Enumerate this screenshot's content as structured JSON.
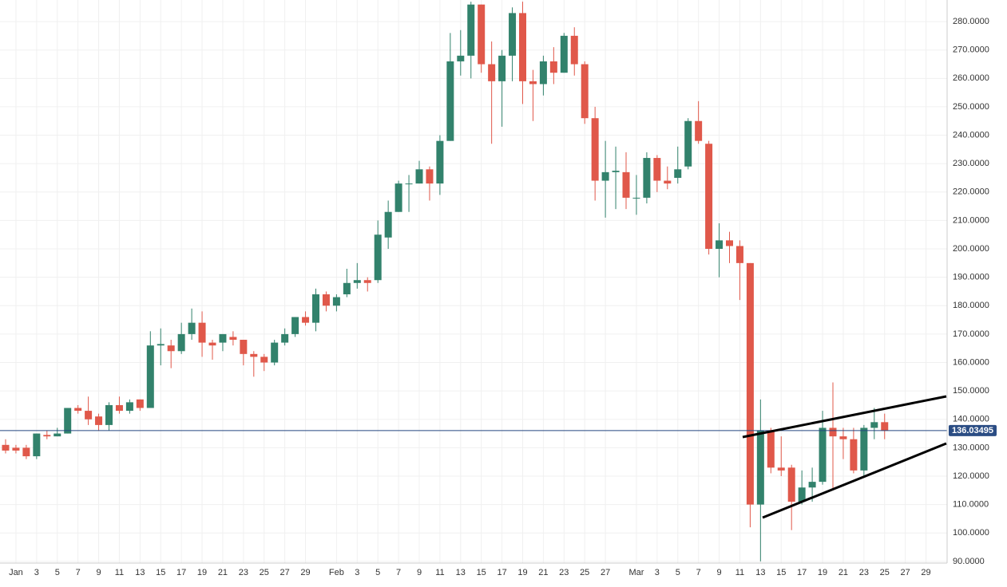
{
  "chart_data": {
    "type": "candlestick",
    "categories": [
      null,
      "Jan",
      null,
      "3",
      null,
      "5",
      null,
      "7",
      null,
      "9",
      null,
      "11",
      null,
      "13",
      null,
      "15",
      null,
      "17",
      null,
      "19",
      null,
      "21",
      null,
      "23",
      null,
      "25",
      null,
      "27",
      null,
      "29",
      null,
      null,
      "Feb",
      null,
      "3",
      null,
      "5",
      null,
      "7",
      null,
      "9",
      null,
      "11",
      null,
      "13",
      null,
      "15",
      null,
      "17",
      null,
      "19",
      null,
      "21",
      null,
      "23",
      null,
      "25",
      null,
      "27",
      null,
      null,
      "Mar",
      null,
      "3",
      null,
      "5",
      null,
      "7",
      null,
      "9",
      null,
      "11",
      null,
      "13",
      null,
      "15",
      null,
      "17",
      null,
      "19",
      null,
      "21",
      null,
      "23",
      null,
      "25",
      null,
      "27",
      null,
      "29",
      null,
      null
    ],
    "open": [
      131,
      130,
      130,
      127,
      134.5,
      134,
      135,
      144,
      143,
      141,
      138,
      145,
      143,
      147,
      144,
      166,
      166,
      164,
      170,
      174,
      167,
      167,
      169,
      168,
      163,
      162,
      160,
      167,
      170,
      176,
      174,
      184,
      180,
      184,
      188,
      189,
      189,
      204,
      213,
      223,
      223,
      228,
      223,
      238,
      266,
      268,
      286,
      265,
      259,
      268,
      283,
      259,
      258,
      266,
      262,
      275,
      265,
      246,
      224,
      227,
      227,
      218,
      218,
      232,
      224,
      225,
      229,
      245,
      237,
      200,
      203,
      201,
      195,
      110,
      136,
      123,
      123,
      111,
      116,
      118,
      137,
      134,
      133,
      122,
      137,
      139,
      null,
      null,
      null,
      null,
      null,
      null
    ],
    "high": [
      133,
      131,
      131,
      135,
      136,
      137,
      144,
      145,
      148,
      142,
      146,
      148,
      147,
      147,
      171,
      172,
      168,
      174,
      179,
      178,
      168,
      170,
      171,
      168,
      164,
      163,
      168,
      172,
      176,
      178,
      186,
      185,
      184,
      193,
      195,
      190,
      210,
      217,
      224,
      226,
      231,
      229,
      240,
      276,
      277,
      287,
      286,
      273,
      270,
      285,
      287,
      263,
      268,
      271,
      276,
      278,
      266,
      250,
      238,
      236,
      234,
      226,
      234,
      233,
      229,
      236,
      246,
      252,
      238,
      209,
      206,
      203,
      195,
      147,
      137,
      134,
      124,
      122,
      123,
      143,
      153,
      137,
      137,
      138,
      144,
      142,
      null,
      null,
      null,
      null,
      null,
      null
    ],
    "low": [
      128,
      128,
      126,
      126,
      133,
      134,
      135,
      142,
      138,
      136,
      136,
      142,
      142,
      143,
      144,
      159,
      158,
      163,
      168,
      162,
      161,
      164,
      166,
      159,
      155,
      157,
      159,
      166,
      169,
      173,
      171,
      178,
      178,
      183,
      186,
      185,
      188,
      200,
      213,
      213,
      223,
      217,
      219,
      238,
      261,
      260,
      262,
      237,
      243,
      259,
      251,
      245,
      254,
      258,
      262,
      261,
      244,
      217,
      211,
      214,
      214,
      212,
      216,
      220,
      221,
      223,
      228,
      237,
      198,
      190,
      195,
      182,
      102,
      90,
      121,
      120,
      101,
      110,
      111,
      117,
      115,
      126,
      121,
      120,
      133,
      133,
      null,
      null,
      null,
      null,
      null,
      null
    ],
    "close": [
      129,
      129,
      127,
      135,
      134,
      135,
      144,
      143,
      140,
      138,
      145,
      143,
      146,
      144,
      166,
      166.5,
      164,
      170,
      174,
      167,
      166,
      170,
      168,
      163,
      162,
      160,
      167,
      170,
      176,
      174,
      184,
      180,
      183,
      188,
      189,
      188,
      205,
      213,
      223,
      223,
      228,
      223,
      238,
      266,
      268,
      286,
      265,
      259,
      268,
      283,
      259,
      258,
      266,
      262,
      275,
      265,
      246,
      224,
      227,
      227.5,
      218,
      218,
      232,
      224,
      223,
      228,
      245,
      238,
      200,
      203,
      201,
      195,
      110,
      136,
      123,
      122,
      111,
      116,
      118,
      137,
      134,
      133,
      122,
      137,
      139,
      136,
      null,
      null,
      null,
      null,
      null,
      null
    ],
    "up_color": "#32826c",
    "down_color": "#e0584a",
    "ylim": [
      89.4,
      287.6
    ],
    "yticks": [
      {
        "value": 90,
        "label": "90.0000"
      },
      {
        "value": 100,
        "label": "100.0000"
      },
      {
        "value": 110,
        "label": "110.0000"
      },
      {
        "value": 120,
        "label": "120.0000"
      },
      {
        "value": 130,
        "label": "130.0000"
      },
      {
        "value": 140,
        "label": "140.0000"
      },
      {
        "value": 150,
        "label": "150.0000"
      },
      {
        "value": 160,
        "label": "160.0000"
      },
      {
        "value": 170,
        "label": "170.0000"
      },
      {
        "value": 180,
        "label": "180.0000"
      },
      {
        "value": 190,
        "label": "190.0000"
      },
      {
        "value": 200,
        "label": "200.0000"
      },
      {
        "value": 210,
        "label": "210.0000"
      },
      {
        "value": 220,
        "label": "220.0000"
      },
      {
        "value": 230,
        "label": "230.0000"
      },
      {
        "value": 240,
        "label": "240.0000"
      },
      {
        "value": 250,
        "label": "250.0000"
      },
      {
        "value": 260,
        "label": "260.0000"
      },
      {
        "value": 270,
        "label": "270.0000"
      },
      {
        "value": 280,
        "label": "280.0000"
      }
    ],
    "last_price": 136.03495,
    "grid": true
  }
}
